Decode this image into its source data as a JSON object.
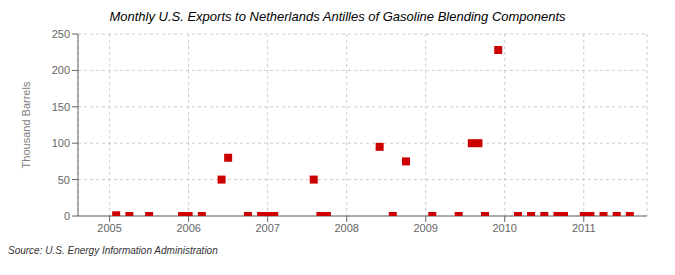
{
  "chart_data": {
    "type": "scatter",
    "title": "Monthly U.S. Exports to Netherlands Antilles of Gasoline Blending Components",
    "ylabel": "Thousand Barrels",
    "annotations": [
      "Source: U.S. Energy Information Administration"
    ],
    "x": [
      2005.083,
      2005.25,
      2005.5,
      2005.917,
      2006.0,
      2006.167,
      2006.417,
      2006.5,
      2006.75,
      2006.917,
      2007.0,
      2007.083,
      2007.583,
      2007.667,
      2007.75,
      2008.417,
      2008.583,
      2008.75,
      2009.083,
      2009.417,
      2009.583,
      2009.667,
      2009.75,
      2009.917,
      2010.167,
      2010.333,
      2010.5,
      2010.667,
      2010.75,
      2011.0,
      2011.083,
      2011.25,
      2011.417,
      2011.583
    ],
    "values": [
      1,
      0,
      0,
      0,
      0,
      0,
      50,
      80,
      0,
      0,
      0,
      0,
      50,
      0,
      0,
      95,
      0,
      75,
      0,
      0,
      100,
      100,
      0,
      228,
      0,
      0,
      0,
      0,
      0,
      0,
      0,
      0,
      0,
      0
    ],
    "color": "#cc0000",
    "marker": "square",
    "xlim": [
      2004.6,
      2011.8
    ],
    "xticks": [
      2005,
      2006,
      2007,
      2008,
      2009,
      2010,
      2011
    ],
    "ylim": [
      0,
      250
    ],
    "yticks": [
      0,
      50,
      100,
      150,
      200,
      250
    ],
    "grid": true
  }
}
